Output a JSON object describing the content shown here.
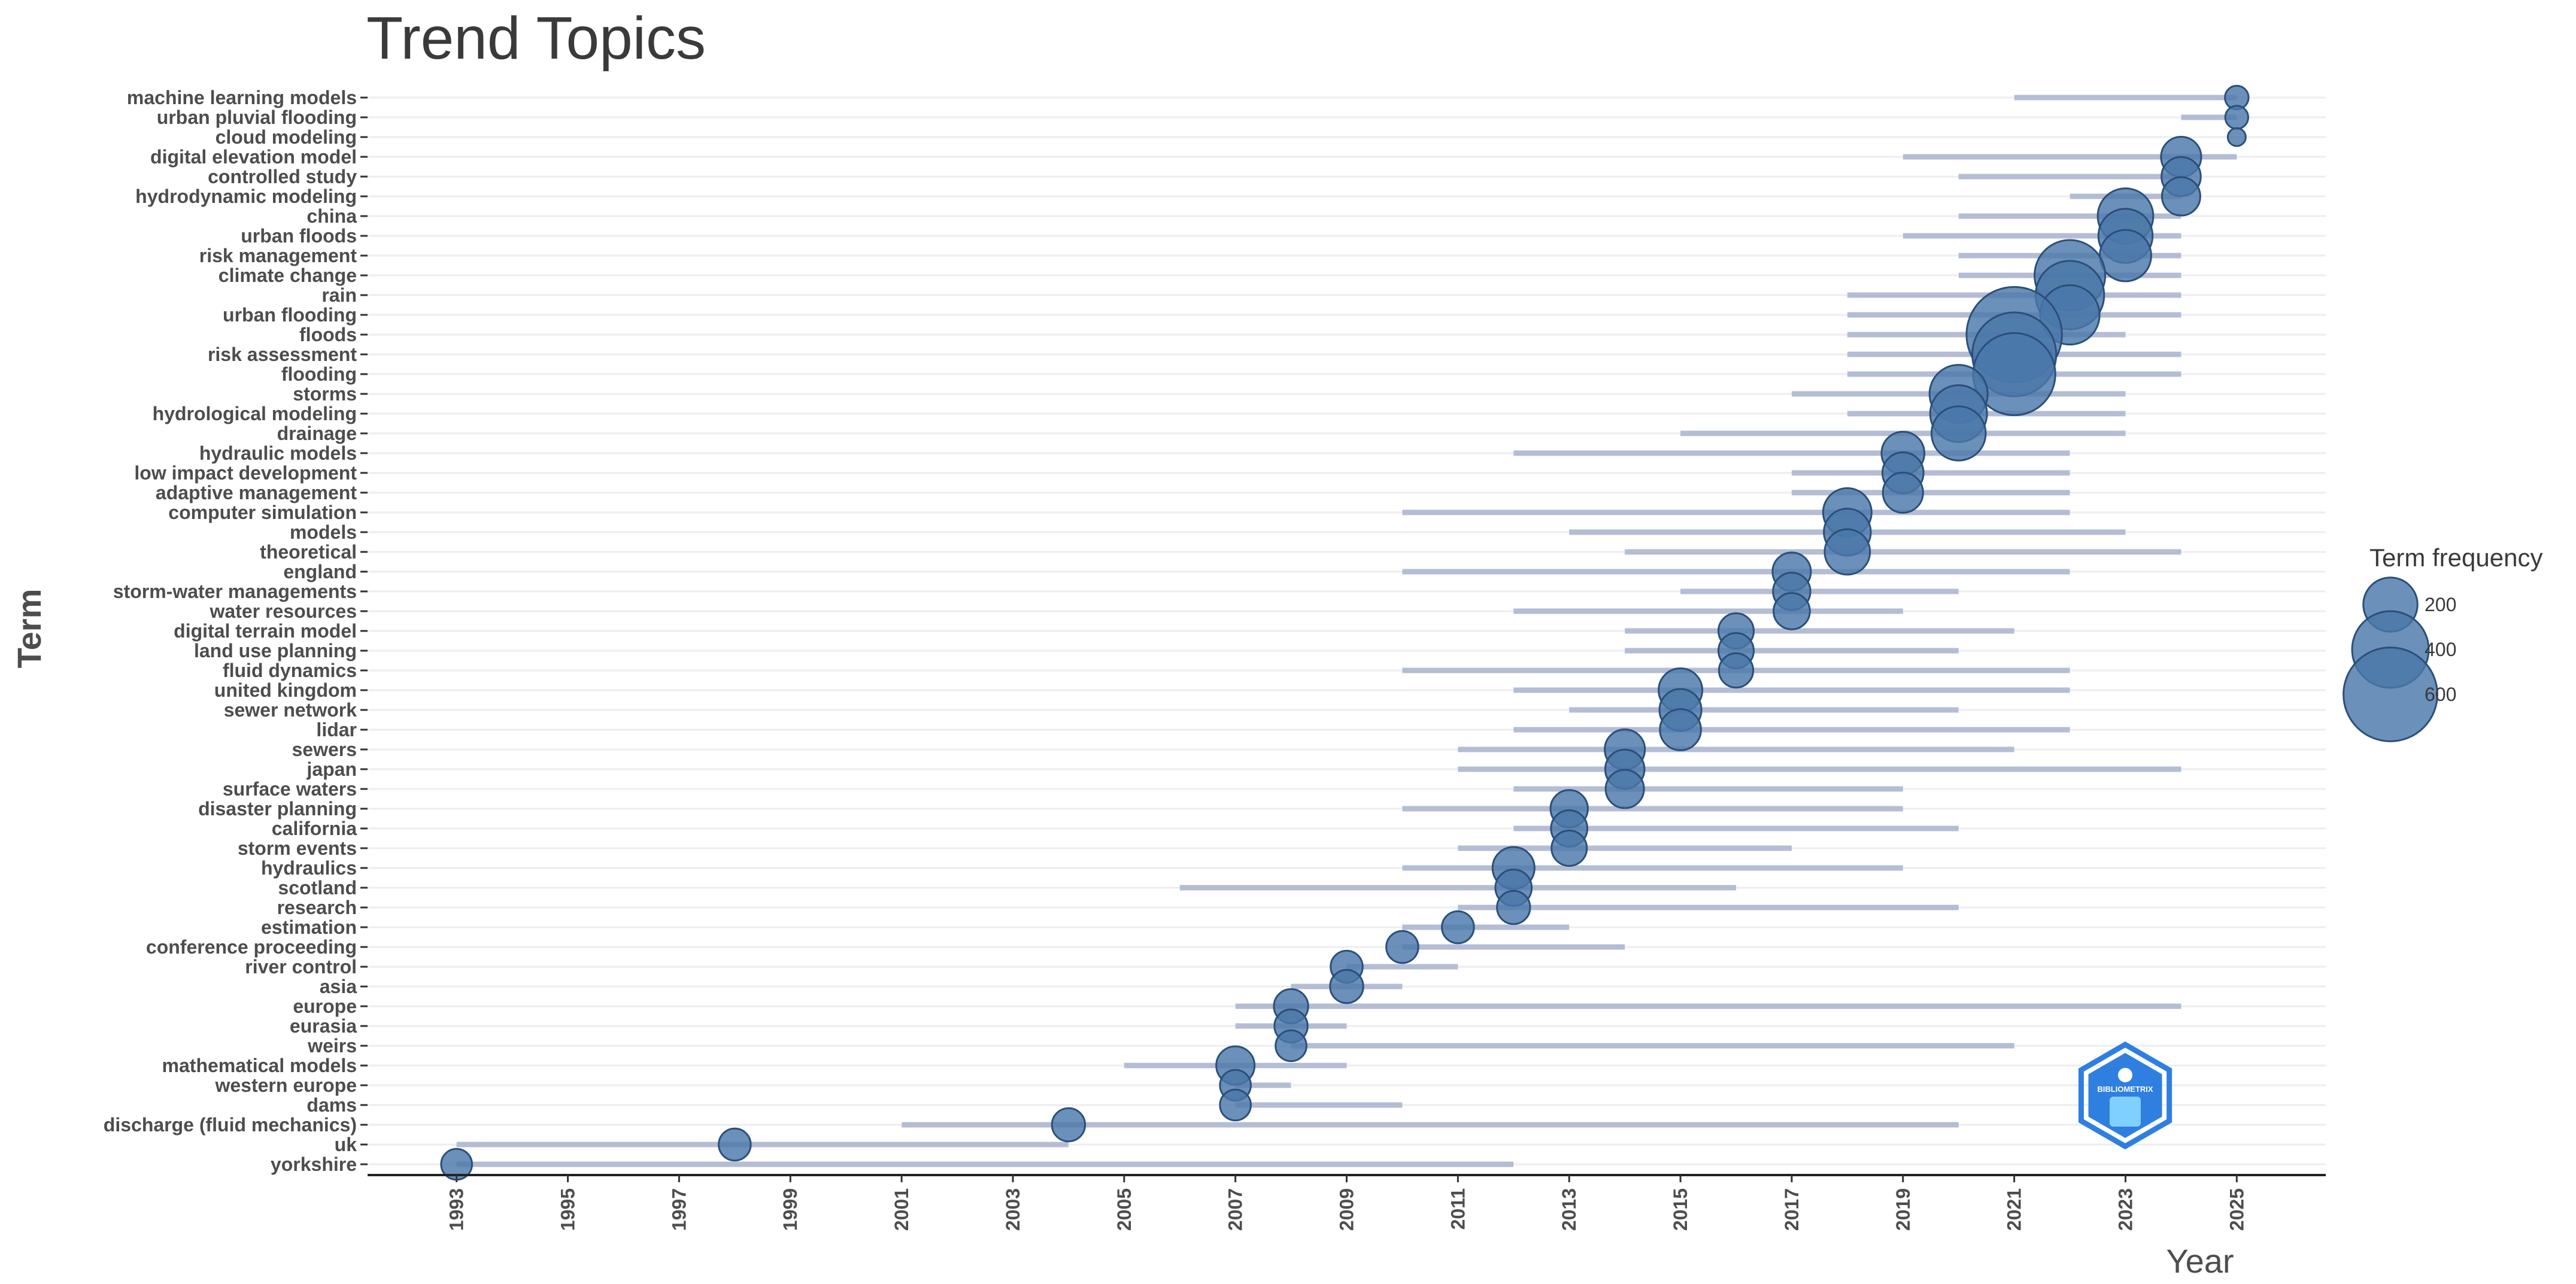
{
  "chart_data": {
    "type": "scatter",
    "title": "Trend Topics",
    "xlabel": "Year",
    "ylabel": "Term",
    "xlim": [
      1991.4,
      2026.6
    ],
    "x_ticks": [
      1993,
      1995,
      1997,
      1999,
      2001,
      2003,
      2005,
      2007,
      2009,
      2011,
      2013,
      2015,
      2017,
      2019,
      2021,
      2023,
      2025
    ],
    "grid": "horizontal",
    "legend": {
      "title": "Term frequency",
      "placement": "right",
      "entries": [
        {
          "label": "200",
          "value": 200
        },
        {
          "label": "400",
          "value": 400
        },
        {
          "label": "600",
          "value": 600
        }
      ]
    },
    "colors": {
      "point": "#4a77aa",
      "point_stroke": "#2b4f7a",
      "range": "#b4bdd4",
      "grid": "#ececf2",
      "logo": "#2f7fe0"
    },
    "series": [
      {
        "term": "machine learning models",
        "q1": 2021,
        "median": 2025,
        "q3": 2025,
        "freq": 38
      },
      {
        "term": "urban pluvial flooding",
        "q1": 2024,
        "median": 2025,
        "q3": 2025,
        "freq": 36
      },
      {
        "term": "cloud modeling",
        "q1": 2025,
        "median": 2025,
        "q3": 2025,
        "freq": 22
      },
      {
        "term": "digital elevation model",
        "q1": 2019,
        "median": 2024,
        "q3": 2025,
        "freq": 110
      },
      {
        "term": "controlled study",
        "q1": 2020,
        "median": 2024,
        "q3": 2024,
        "freq": 105
      },
      {
        "term": "hydrodynamic modeling",
        "q1": 2022,
        "median": 2024,
        "q3": 2024,
        "freq": 100
      },
      {
        "term": "china",
        "q1": 2020,
        "median": 2023,
        "q3": 2024,
        "freq": 210
      },
      {
        "term": "urban floods",
        "q1": 2019,
        "median": 2023,
        "q3": 2024,
        "freq": 200
      },
      {
        "term": "risk management",
        "q1": 2020,
        "median": 2023,
        "q3": 2024,
        "freq": 180
      },
      {
        "term": "climate change",
        "q1": 2020,
        "median": 2022,
        "q3": 2024,
        "freq": 340
      },
      {
        "term": "rain",
        "q1": 2018,
        "median": 2022,
        "q3": 2024,
        "freq": 320
      },
      {
        "term": "urban flooding",
        "q1": 2018,
        "median": 2022,
        "q3": 2024,
        "freq": 240
      },
      {
        "term": "floods",
        "q1": 2018,
        "median": 2021,
        "q3": 2023,
        "freq": 620
      },
      {
        "term": "risk assessment",
        "q1": 2018,
        "median": 2021,
        "q3": 2024,
        "freq": 480
      },
      {
        "term": "flooding",
        "q1": 2018,
        "median": 2021,
        "q3": 2024,
        "freq": 460
      },
      {
        "term": "storms",
        "q1": 2017,
        "median": 2020,
        "q3": 2023,
        "freq": 230
      },
      {
        "term": "hydrological modeling",
        "q1": 2018,
        "median": 2020,
        "q3": 2023,
        "freq": 220
      },
      {
        "term": "drainage",
        "q1": 2015,
        "median": 2020,
        "q3": 2023,
        "freq": 200
      },
      {
        "term": "hydraulic models",
        "q1": 2012,
        "median": 2019,
        "q3": 2022,
        "freq": 125
      },
      {
        "term": "low impact development",
        "q1": 2017,
        "median": 2019,
        "q3": 2022,
        "freq": 115
      },
      {
        "term": "adaptive management",
        "q1": 2017,
        "median": 2019,
        "q3": 2022,
        "freq": 110
      },
      {
        "term": "computer simulation",
        "q1": 2010,
        "median": 2018,
        "q3": 2022,
        "freq": 160
      },
      {
        "term": "models",
        "q1": 2013,
        "median": 2018,
        "q3": 2023,
        "freq": 150
      },
      {
        "term": "theoretical",
        "q1": 2014,
        "median": 2018,
        "q3": 2024,
        "freq": 140
      },
      {
        "term": "england",
        "q1": 2010,
        "median": 2017,
        "q3": 2022,
        "freq": 100
      },
      {
        "term": "storm-water managements",
        "q1": 2015,
        "median": 2017,
        "q3": 2020,
        "freq": 95
      },
      {
        "term": "water resources",
        "q1": 2012,
        "median": 2017,
        "q3": 2019,
        "freq": 90
      },
      {
        "term": "digital terrain model",
        "q1": 2014,
        "median": 2016,
        "q3": 2021,
        "freq": 85
      },
      {
        "term": "land use planning",
        "q1": 2014,
        "median": 2016,
        "q3": 2020,
        "freq": 85
      },
      {
        "term": "fluid dynamics",
        "q1": 2010,
        "median": 2016,
        "q3": 2022,
        "freq": 80
      },
      {
        "term": "united kingdom",
        "q1": 2012,
        "median": 2015,
        "q3": 2022,
        "freq": 130
      },
      {
        "term": "sewer network",
        "q1": 2013,
        "median": 2015,
        "q3": 2020,
        "freq": 120
      },
      {
        "term": "lidar",
        "q1": 2012,
        "median": 2015,
        "q3": 2022,
        "freq": 115
      },
      {
        "term": "sewers",
        "q1": 2011,
        "median": 2014,
        "q3": 2021,
        "freq": 110
      },
      {
        "term": "japan",
        "q1": 2011,
        "median": 2014,
        "q3": 2024,
        "freq": 105
      },
      {
        "term": "surface waters",
        "q1": 2012,
        "median": 2014,
        "q3": 2019,
        "freq": 100
      },
      {
        "term": "disaster planning",
        "q1": 2010,
        "median": 2013,
        "q3": 2019,
        "freq": 95
      },
      {
        "term": "california",
        "q1": 2012,
        "median": 2013,
        "q3": 2020,
        "freq": 90
      },
      {
        "term": "storm events",
        "q1": 2011,
        "median": 2013,
        "q3": 2017,
        "freq": 85
      },
      {
        "term": "hydraulics",
        "q1": 2010,
        "median": 2012,
        "q3": 2019,
        "freq": 120
      },
      {
        "term": "scotland",
        "q1": 2006,
        "median": 2012,
        "q3": 2016,
        "freq": 90
      },
      {
        "term": "research",
        "q1": 2011,
        "median": 2012,
        "q3": 2020,
        "freq": 75
      },
      {
        "term": "estimation",
        "q1": 2010,
        "median": 2011,
        "q3": 2013,
        "freq": 70
      },
      {
        "term": "conference proceeding",
        "q1": 2010,
        "median": 2010,
        "q3": 2014,
        "freq": 70
      },
      {
        "term": "river control",
        "q1": 2009,
        "median": 2009,
        "q3": 2011,
        "freq": 70
      },
      {
        "term": "asia",
        "q1": 2008,
        "median": 2009,
        "q3": 2010,
        "freq": 75
      },
      {
        "term": "europe",
        "q1": 2007,
        "median": 2008,
        "q3": 2024,
        "freq": 80
      },
      {
        "term": "eurasia",
        "q1": 2007,
        "median": 2008,
        "q3": 2009,
        "freq": 75
      },
      {
        "term": "weirs",
        "q1": 2008,
        "median": 2008,
        "q3": 2021,
        "freq": 65
      },
      {
        "term": "mathematical models",
        "q1": 2005,
        "median": 2007,
        "q3": 2009,
        "freq": 100
      },
      {
        "term": "western europe",
        "q1": 2007,
        "median": 2007,
        "q3": 2008,
        "freq": 65
      },
      {
        "term": "dams",
        "q1": 2007,
        "median": 2007,
        "q3": 2010,
        "freq": 65
      },
      {
        "term": "discharge (fluid mechanics)",
        "q1": 2001,
        "median": 2004,
        "q3": 2020,
        "freq": 75
      },
      {
        "term": "uk",
        "q1": 1993,
        "median": 1998,
        "q3": 2004,
        "freq": 70
      },
      {
        "term": "yorkshire",
        "q1": 1993,
        "median": 1993,
        "q3": 2012,
        "freq": 65
      }
    ],
    "watermark": "BIBLIOMETRIX"
  }
}
